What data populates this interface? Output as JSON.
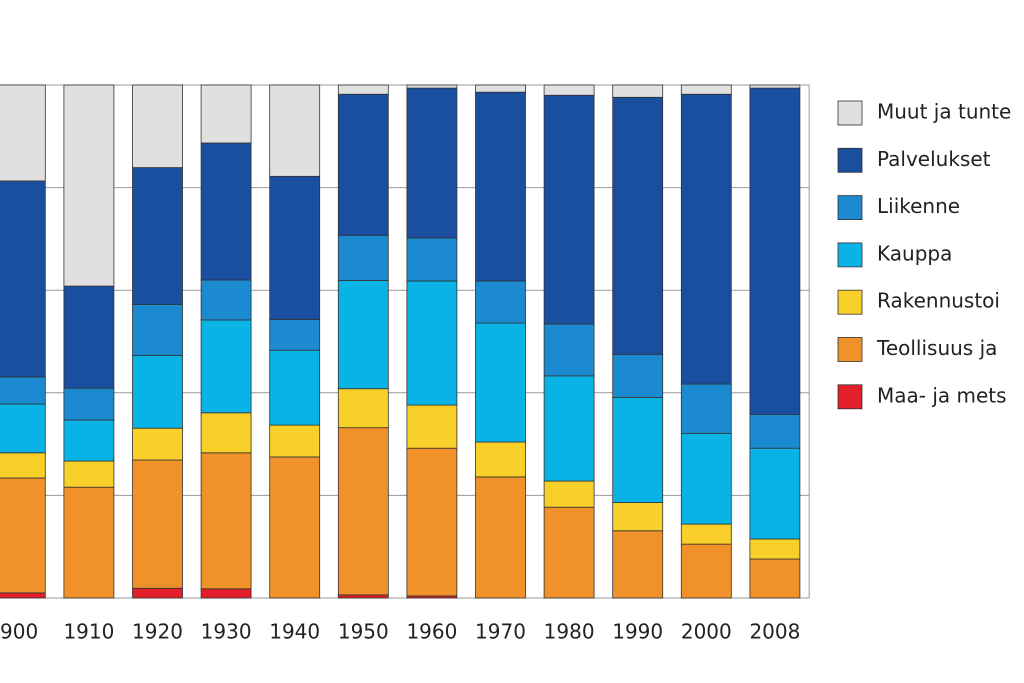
{
  "chart_data": {
    "type": "stacked_bar",
    "categories": [
      "900",
      "1910",
      "1920",
      "1930",
      "1940",
      "1950",
      "1960",
      "1970",
      "1980",
      "1990",
      "2000",
      "2008"
    ],
    "ylim": [
      0,
      100
    ],
    "yticks": [
      0,
      20,
      40,
      60,
      80,
      100
    ],
    "grid": true,
    "legend": "right",
    "series": [
      {
        "name": "Maa- ja mets",
        "color": "#e3202a",
        "values": [
          1,
          0,
          1.9,
          1.8,
          0,
          0.6,
          0.4,
          0,
          0,
          0,
          0,
          0
        ]
      },
      {
        "name": "Teollisuus ja",
        "color": "#f0912a",
        "values": [
          22.4,
          21.6,
          25,
          26.5,
          27.5,
          32.6,
          28.8,
          23.6,
          17.7,
          13.1,
          10.5,
          7.6
        ]
      },
      {
        "name": "Rakennustoi",
        "color": "#f9cf2a",
        "values": [
          4.9,
          5.1,
          6.2,
          7.8,
          6.2,
          7.6,
          8.4,
          6.8,
          5.1,
          5.5,
          3.9,
          3.9
        ]
      },
      {
        "name": "Kauppa",
        "color": "#0ab3e6",
        "values": [
          9.5,
          8,
          14.2,
          18.1,
          14.6,
          21.1,
          24.2,
          23.2,
          20.5,
          20.5,
          17.7,
          17.7
        ]
      },
      {
        "name": "Liikenne",
        "color": "#1b8ad0",
        "values": [
          5.3,
          6.2,
          9.9,
          7.8,
          6,
          8.8,
          8.4,
          8.2,
          10.1,
          8.4,
          9.6,
          6.6
        ]
      },
      {
        "name": "Palvelukset",
        "color": "#1a4fa0",
        "values": [
          38.2,
          19.9,
          26.7,
          26.7,
          27.9,
          27.5,
          29.2,
          36.8,
          44.6,
          50.1,
          56.5,
          63.6
        ]
      },
      {
        "name": "Muut ja tunte",
        "color": "#e0e0e0",
        "values": [
          18.7,
          39.2,
          16.1,
          11.3,
          17.8,
          1.8,
          0.6,
          1.4,
          2,
          2.4,
          1.8,
          0.6
        ]
      }
    ]
  }
}
